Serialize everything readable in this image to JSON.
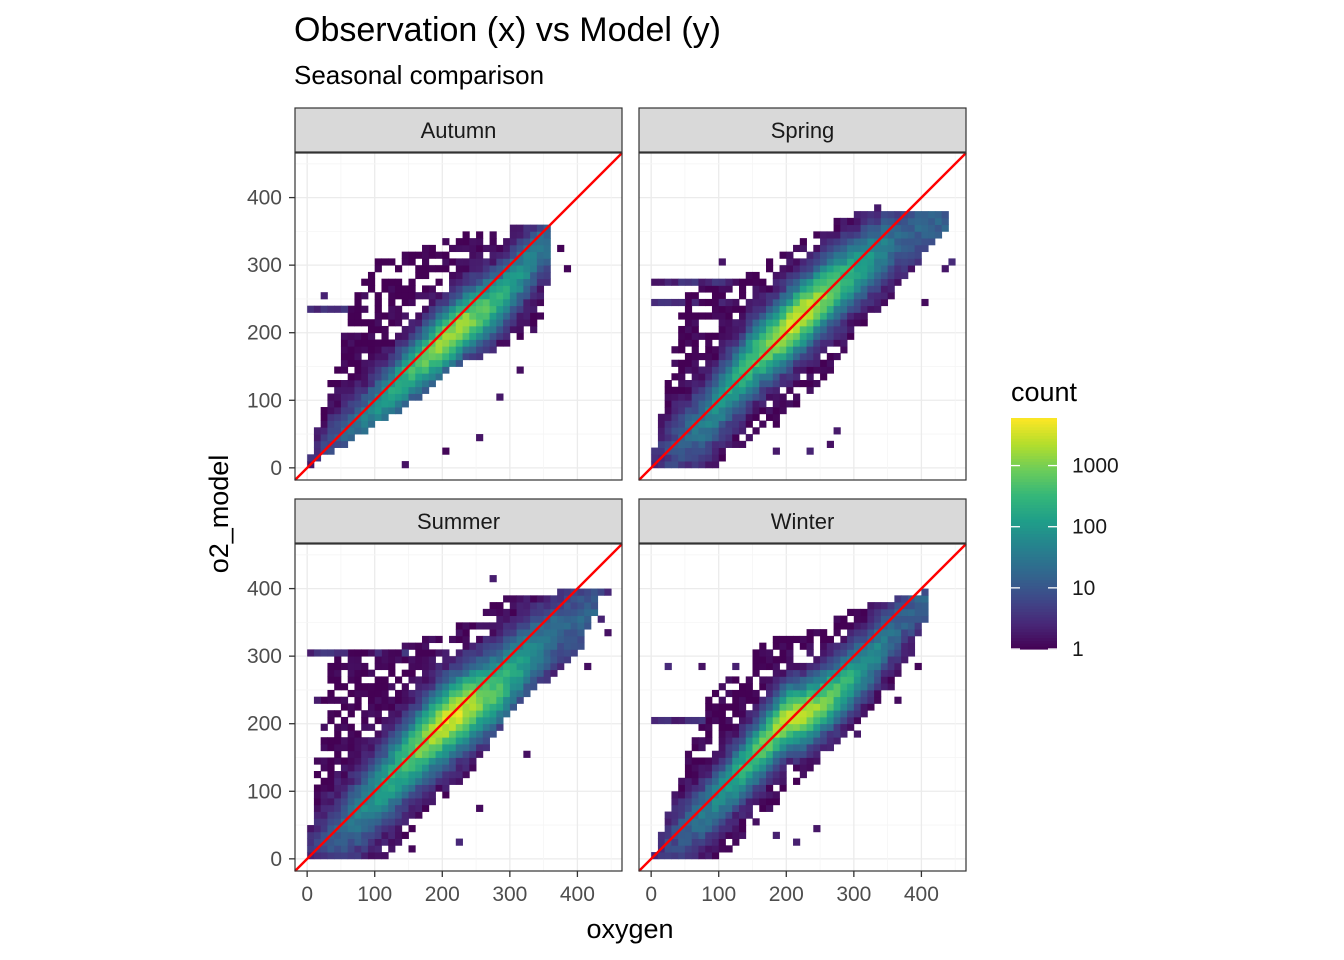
{
  "chart_data": {
    "type": "heatmap",
    "title": "Observation (x) vs Model (y)",
    "subtitle": "Seasonal comparison",
    "xlabel": "oxygen",
    "ylabel": "o2_model",
    "xlim": [
      -18,
      466
    ],
    "ylim": [
      -18,
      466
    ],
    "x_ticks": [
      0,
      100,
      200,
      300,
      400
    ],
    "y_ticks": [
      0,
      100,
      200,
      300,
      400
    ],
    "reference_line": {
      "slope": 1,
      "intercept": 0,
      "color": "#FF0000"
    },
    "bin_width": 10,
    "colormap": "viridis",
    "legend": {
      "title": "count",
      "scale": "log10",
      "min": 1,
      "max": 6000,
      "breaks": [
        1,
        10,
        100,
        1000
      ],
      "labels": [
        "1",
        "10",
        "100",
        "1000"
      ]
    },
    "panels": [
      {
        "label": "Autumn",
        "ridge": [
          [
            0,
            5
          ],
          [
            80,
            65
          ],
          [
            150,
            140
          ],
          [
            200,
            185
          ],
          [
            240,
            220
          ],
          [
            280,
            245
          ],
          [
            320,
            290
          ],
          [
            350,
            330
          ]
        ],
        "x_range": [
          0,
          360
        ],
        "spread": 45,
        "peak_count": 1800,
        "x_max_at": [
          [
            0,
            0
          ],
          [
            100,
            160
          ],
          [
            150,
            220
          ],
          [
            200,
            340
          ],
          [
            300,
            360
          ],
          [
            350,
            360
          ]
        ],
        "y_max_at": [
          [
            0,
            0
          ],
          [
            80,
            300
          ],
          [
            160,
            320
          ],
          [
            260,
            355
          ],
          [
            360,
            360
          ]
        ],
        "ext_rows": [
          [
            240,
            0,
            70
          ]
        ],
        "scatter": [
          [
            20,
            250
          ],
          [
            60,
            230
          ],
          [
            120,
            260
          ],
          [
            170,
            320
          ],
          [
            370,
            320
          ],
          [
            380,
            290
          ],
          [
            350,
            310
          ],
          [
            280,
            100
          ],
          [
            310,
            140
          ],
          [
            250,
            40
          ],
          [
            200,
            20
          ],
          [
            140,
            5
          ]
        ]
      },
      {
        "label": "Spring",
        "ridge": [
          [
            0,
            5
          ],
          [
            80,
            70
          ],
          [
            150,
            160
          ],
          [
            200,
            205
          ],
          [
            250,
            250
          ],
          [
            300,
            290
          ],
          [
            350,
            330
          ],
          [
            400,
            360
          ]
        ],
        "x_range": [
          0,
          440
        ],
        "spread": 50,
        "peak_count": 3000,
        "x_max_at": [
          [
            0,
            90
          ],
          [
            60,
            180
          ],
          [
            130,
            260
          ],
          [
            200,
            300
          ],
          [
            260,
            360
          ],
          [
            360,
            440
          ],
          [
            400,
            440
          ]
        ],
        "y_max_at": [
          [
            0,
            0
          ],
          [
            50,
            260
          ],
          [
            120,
            280
          ],
          [
            200,
            320
          ],
          [
            300,
            380
          ],
          [
            440,
            380
          ]
        ],
        "ext_rows": [
          [
            280,
            0,
            150
          ],
          [
            250,
            0,
            120
          ]
        ],
        "scatter": [
          [
            400,
            240
          ],
          [
            430,
            290
          ],
          [
            440,
            300
          ],
          [
            420,
            360
          ],
          [
            260,
            30
          ],
          [
            270,
            50
          ],
          [
            230,
            20
          ],
          [
            180,
            20
          ],
          [
            100,
            300
          ],
          [
            360,
            370
          ],
          [
            330,
            380
          ]
        ]
      },
      {
        "label": "Summer",
        "ridge": [
          [
            0,
            5
          ],
          [
            80,
            70
          ],
          [
            150,
            150
          ],
          [
            200,
            200
          ],
          [
            250,
            235
          ],
          [
            280,
            250
          ],
          [
            320,
            290
          ],
          [
            370,
            340
          ],
          [
            420,
            360
          ]
        ],
        "x_range": [
          0,
          440
        ],
        "spread": 55,
        "peak_count": 3500,
        "x_max_at": [
          [
            0,
            120
          ],
          [
            50,
            160
          ],
          [
            100,
            220
          ],
          [
            170,
            270
          ],
          [
            220,
            300
          ],
          [
            300,
            400
          ],
          [
            400,
            440
          ]
        ],
        "y_max_at": [
          [
            0,
            0
          ],
          [
            30,
            300
          ],
          [
            100,
            310
          ],
          [
            200,
            330
          ],
          [
            300,
            390
          ],
          [
            440,
            400
          ]
        ],
        "ext_rows": [
          [
            310,
            0,
            150
          ],
          [
            240,
            10,
            60
          ]
        ],
        "scatter": [
          [
            270,
            410
          ],
          [
            440,
            390
          ],
          [
            430,
            350
          ],
          [
            410,
            280
          ],
          [
            440,
            330
          ],
          [
            220,
            20
          ],
          [
            150,
            10
          ],
          [
            320,
            150
          ],
          [
            250,
            70
          ],
          [
            60,
            180
          ]
        ]
      },
      {
        "label": "Winter",
        "ridge": [
          [
            0,
            5
          ],
          [
            80,
            70
          ],
          [
            150,
            150
          ],
          [
            200,
            210
          ],
          [
            230,
            215
          ],
          [
            280,
            250
          ],
          [
            320,
            290
          ],
          [
            360,
            340
          ],
          [
            400,
            380
          ]
        ],
        "x_range": [
          0,
          420
        ],
        "spread": 45,
        "peak_count": 2500,
        "x_max_at": [
          [
            0,
            100
          ],
          [
            50,
            150
          ],
          [
            100,
            200
          ],
          [
            150,
            260
          ],
          [
            200,
            300
          ],
          [
            260,
            360
          ],
          [
            360,
            410
          ],
          [
            400,
            410
          ]
        ],
        "y_max_at": [
          [
            0,
            0
          ],
          [
            80,
            230
          ],
          [
            160,
            320
          ],
          [
            250,
            340
          ],
          [
            300,
            370
          ],
          [
            420,
            400
          ]
        ],
        "ext_rows": [
          [
            210,
            0,
            110
          ]
        ],
        "scatter": [
          [
            20,
            280
          ],
          [
            70,
            280
          ],
          [
            120,
            280
          ],
          [
            100,
            250
          ],
          [
            240,
            40
          ],
          [
            210,
            20
          ],
          [
            180,
            30
          ],
          [
            390,
            280
          ],
          [
            380,
            300
          ],
          [
            360,
            230
          ],
          [
            270,
            190
          ],
          [
            300,
            180
          ]
        ]
      }
    ]
  }
}
